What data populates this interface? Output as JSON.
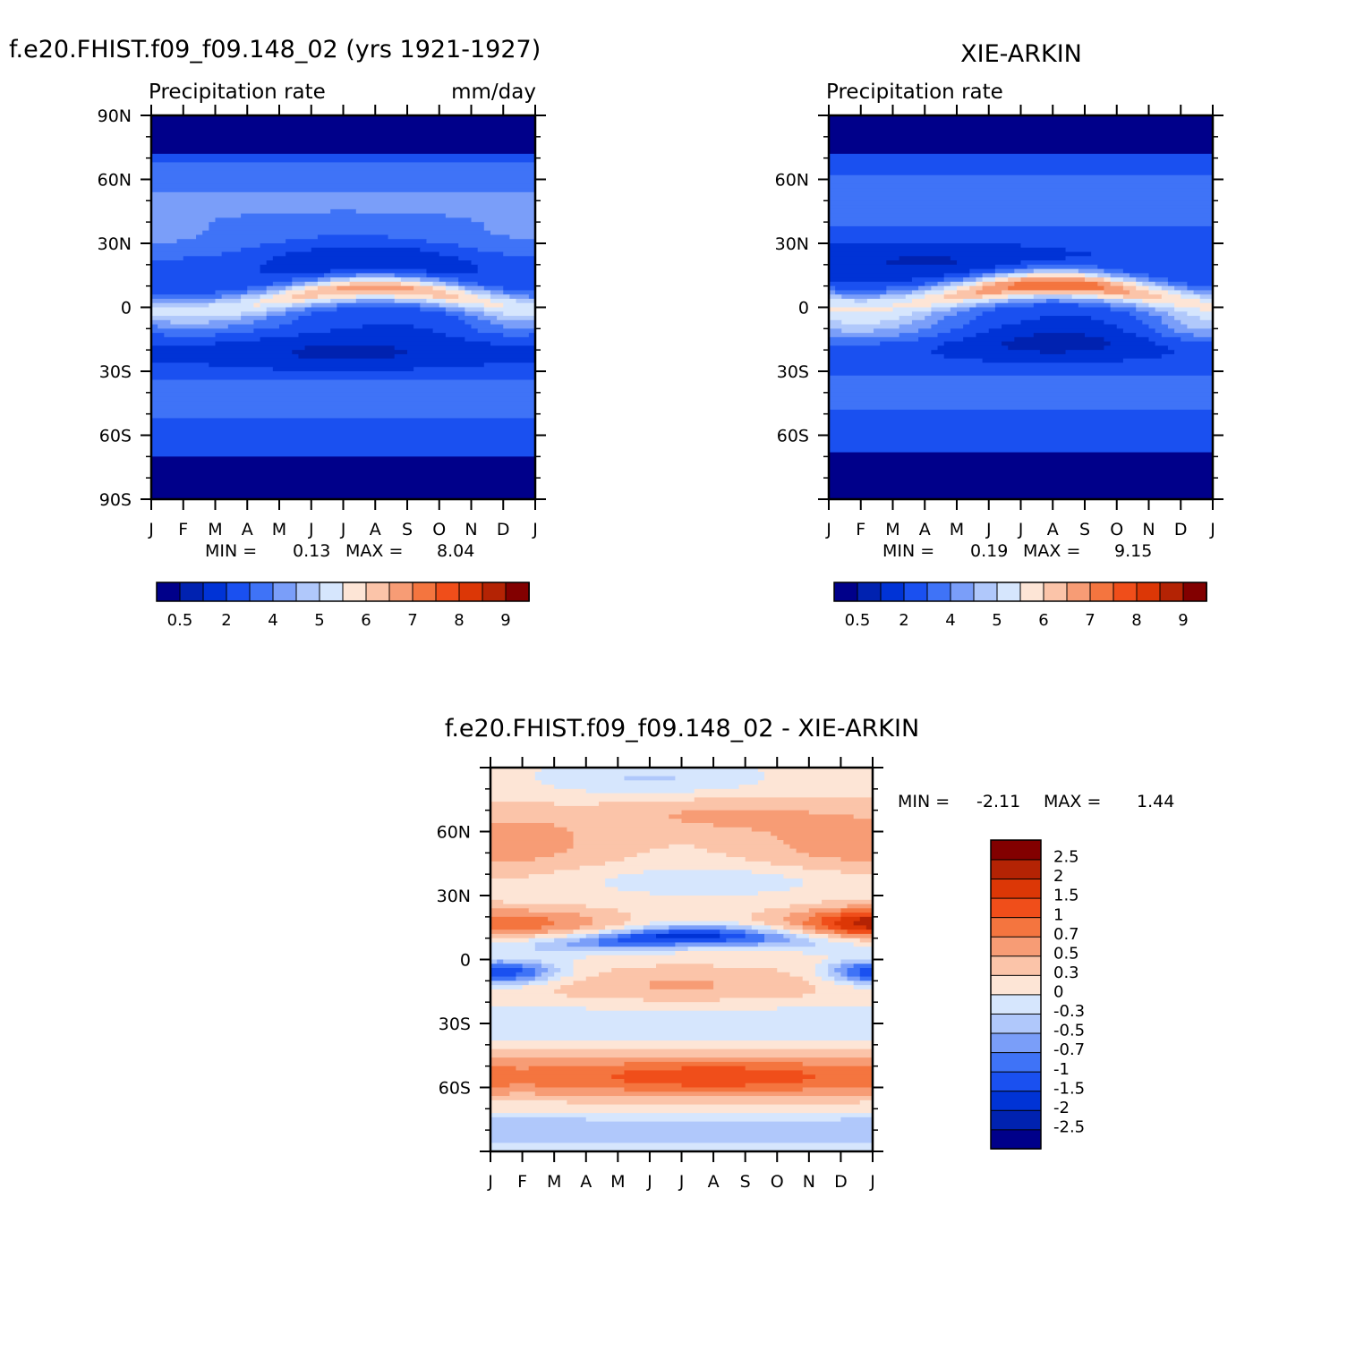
{
  "colors": {
    "abs_levels": [
      "#00008a",
      "#0022b0",
      "#0033d6",
      "#1a50f0",
      "#3f73f7",
      "#7a9ef9",
      "#b0c8fb",
      "#d6e6fd",
      "#fde5d6",
      "#fbc4a9",
      "#f79c75",
      "#f4753f",
      "#f04e1a",
      "#dc3706",
      "#b42304",
      "#820000"
    ],
    "diff_levels": [
      "#00008a",
      "#0022b0",
      "#0033d6",
      "#1a50f0",
      "#3f73f7",
      "#7a9ef9",
      "#b0c8fb",
      "#d6e6fd",
      "#fde5d6",
      "#fbc4a9",
      "#f79c75",
      "#f4753f",
      "#f04e1a",
      "#dc3706",
      "#b42304",
      "#820000"
    ]
  },
  "panels": {
    "model": {
      "title": "f.e20.FHIST.f09_f09.148_02 (yrs 1921-1927)",
      "left_label": "Precipitation rate",
      "right_label": "mm/day",
      "min_label": "MIN =",
      "min_value": "0.13",
      "max_label": "MAX =",
      "max_value": "8.04"
    },
    "obs": {
      "title": "XIE-ARKIN",
      "left_label": "Precipitation rate",
      "right_label": "",
      "min_label": "MIN =",
      "min_value": "0.19",
      "max_label": "MAX =",
      "max_value": "9.15"
    },
    "diff": {
      "title": "f.e20.FHIST.f09_f09.148_02 - XIE-ARKIN",
      "min_label": "MIN =",
      "min_value": "-2.11",
      "max_label": "MAX =",
      "max_value": "1.44"
    }
  },
  "chart_data": [
    {
      "type": "heatmap",
      "title": "f.e20.FHIST.f09_f09.148_02 (yrs 1921-1927)",
      "subtitle_left": "Precipitation rate",
      "subtitle_right": "mm/day",
      "x_ticks": [
        "J",
        "F",
        "M",
        "A",
        "M",
        "J",
        "J",
        "A",
        "S",
        "O",
        "N",
        "D",
        "J"
      ],
      "y_ticks": [
        "90N",
        "60N",
        "30N",
        "0",
        "30S",
        "60S",
        "90S"
      ],
      "ylim": [
        -90,
        90
      ],
      "colorbar_labels": [
        "0.5",
        "2",
        "4",
        "5",
        "6",
        "7",
        "8",
        "9"
      ],
      "min": 0.13,
      "max": 8.04
    },
    {
      "type": "heatmap",
      "title": "XIE-ARKIN",
      "subtitle_left": "Precipitation rate",
      "x_ticks": [
        "J",
        "F",
        "M",
        "A",
        "M",
        "J",
        "J",
        "A",
        "S",
        "O",
        "N",
        "D",
        "J"
      ],
      "y_ticks": [
        "60N",
        "30N",
        "0",
        "30S",
        "60S"
      ],
      "ylim": [
        -90,
        90
      ],
      "colorbar_labels": [
        "0.5",
        "2",
        "4",
        "5",
        "6",
        "7",
        "8",
        "9"
      ],
      "min": 0.19,
      "max": 9.15
    },
    {
      "type": "heatmap",
      "title": "f.e20.FHIST.f09_f09.148_02 - XIE-ARKIN",
      "x_ticks": [
        "J",
        "F",
        "M",
        "A",
        "M",
        "J",
        "J",
        "A",
        "S",
        "O",
        "N",
        "D",
        "J"
      ],
      "y_ticks": [
        "60N",
        "30N",
        "0",
        "30S",
        "60S"
      ],
      "ylim": [
        -90,
        90
      ],
      "colorbar_labels": [
        "2.5",
        "2",
        "1.5",
        "1",
        "0.7",
        "0.5",
        "0.3",
        "0",
        "-0.3",
        "-0.5",
        "-0.7",
        "-1",
        "-1.5",
        "-2",
        "-2.5"
      ],
      "min": -2.11,
      "max": 1.44
    }
  ]
}
